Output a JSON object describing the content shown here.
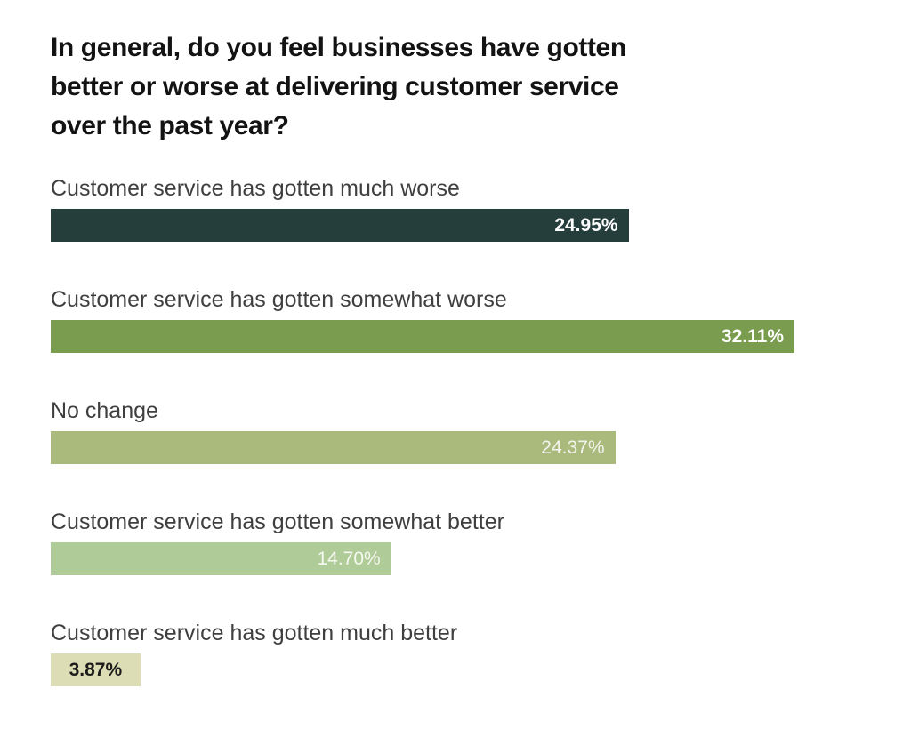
{
  "header": {
    "title_lines": [
      "In general, do you feel businesses have gotten",
      "better or worse at delivering customer service",
      "over the past year?"
    ]
  },
  "chart_data": {
    "type": "bar",
    "orientation": "horizontal",
    "title": "In general, do you feel businesses have gotten better or worse at delivering customer service over the past year?",
    "categories": [
      "Customer service has gotten much worse",
      "Customer service has gotten somewhat worse",
      "No change",
      "Customer service has gotten somewhat better",
      "Customer service has gotten much better"
    ],
    "values": [
      24.95,
      32.11,
      24.37,
      14.7,
      3.87
    ],
    "value_labels": [
      "24.95%",
      "32.11%",
      "24.37%",
      "14.70%",
      "3.87%"
    ],
    "bar_colors": [
      "#253e3c",
      "#7a9c4f",
      "#aaba7d",
      "#afcb97",
      "#dcddb5"
    ],
    "value_label_colors": [
      "#ffffff",
      "#ffffff",
      "#f3f4ec",
      "#f6f8f1",
      "#1b1b1b"
    ],
    "value_label_weights": [
      700,
      600,
      400,
      400,
      700
    ],
    "value_label_align": [
      "right",
      "right",
      "right",
      "right",
      "center"
    ],
    "xlim": [
      0,
      32.11
    ],
    "grid": false,
    "legend": false,
    "axis_ticks_shown": false
  }
}
